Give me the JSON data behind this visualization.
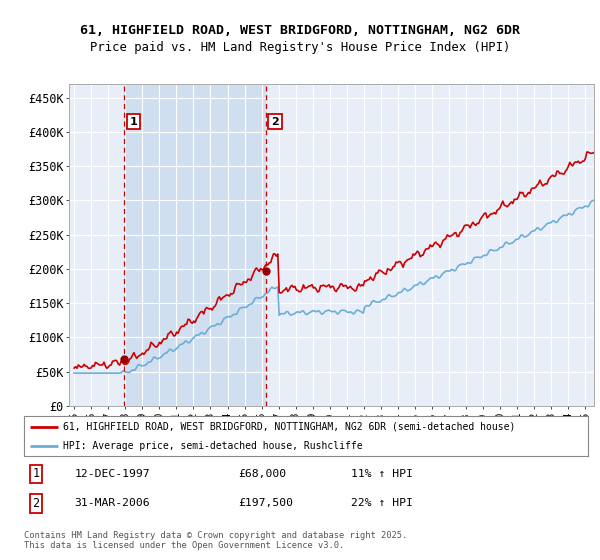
{
  "title_line1": "61, HIGHFIELD ROAD, WEST BRIDGFORD, NOTTINGHAM, NG2 6DR",
  "title_line2": "Price paid vs. HM Land Registry's House Price Index (HPI)",
  "ylabel_ticks": [
    "£0",
    "£50K",
    "£100K",
    "£150K",
    "£200K",
    "£250K",
    "£300K",
    "£350K",
    "£400K",
    "£450K"
  ],
  "ytick_values": [
    0,
    50000,
    100000,
    150000,
    200000,
    250000,
    300000,
    350000,
    400000,
    450000
  ],
  "ylim": [
    0,
    470000
  ],
  "xlim_start": 1994.7,
  "xlim_end": 2025.5,
  "marker1_x": 1997.95,
  "marker1_y": 68000,
  "marker1_label": "1",
  "marker2_x": 2006.25,
  "marker2_y": 197500,
  "marker2_label": "2",
  "annotation1_date": "12-DEC-1997",
  "annotation1_price": "£68,000",
  "annotation1_hpi": "11% ↑ HPI",
  "annotation2_date": "31-MAR-2006",
  "annotation2_price": "£197,500",
  "annotation2_hpi": "22% ↑ HPI",
  "legend_label1": "61, HIGHFIELD ROAD, WEST BRIDGFORD, NOTTINGHAM, NG2 6DR (semi-detached house)",
  "legend_label2": "HPI: Average price, semi-detached house, Rushcliffe",
  "footer_text": "Contains HM Land Registry data © Crown copyright and database right 2025.\nThis data is licensed under the Open Government Licence v3.0.",
  "line1_color": "#cc0000",
  "line2_color": "#6baed6",
  "marker_color": "#990000",
  "dashed_line_color": "#cc0000",
  "background_color": "#ffffff",
  "plot_bg_color": "#e8eef8",
  "shade_color": "#d0dff0",
  "grid_color": "#ffffff"
}
